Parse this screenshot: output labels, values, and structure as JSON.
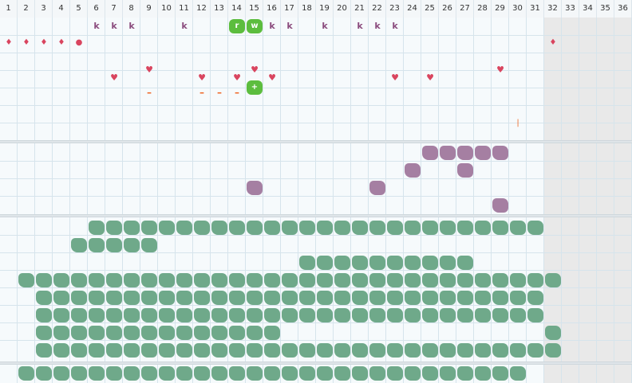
{
  "columns": [
    "1",
    "2",
    "3",
    "4",
    "5",
    "6",
    "7",
    "8",
    "9",
    "10",
    "11",
    "12",
    "13",
    "14",
    "15",
    "16",
    "17",
    "18",
    "19",
    "20",
    "21",
    "22",
    "23",
    "24",
    "25",
    "26",
    "27",
    "28",
    "29",
    "30",
    "31",
    "32",
    "33",
    "34",
    "35",
    "36"
  ],
  "colors": {
    "green_blob": "#6fa98a",
    "purple_blob": "#a57fa2",
    "badge_green": "#5cbd3e",
    "red_marker": "#d9455f",
    "orange_marker": "#ef6b2b",
    "k_marker": "#8a4b7d"
  },
  "band1": {
    "k_marks": [
      6,
      7,
      8,
      11,
      16,
      17,
      19,
      21,
      22,
      23
    ],
    "badges": [
      {
        "col": 14,
        "text": "r"
      },
      {
        "col": 15,
        "text": "w"
      },
      {
        "col": 15,
        "row": 4,
        "text": "+"
      }
    ],
    "drops_row2": [
      1,
      2,
      3,
      4,
      32
    ],
    "dot_row2": [
      5
    ],
    "hearts_row4": [
      7,
      12,
      14,
      16,
      23,
      25
    ],
    "hearts_row3b": [
      9,
      15,
      29
    ],
    "dashes_row5": [
      9,
      12,
      13,
      14
    ],
    "tick_row7": [
      30
    ]
  },
  "band2": {
    "purple": [
      {
        "col": 25,
        "row": 0
      },
      {
        "col": 26,
        "row": 0
      },
      {
        "col": 27,
        "row": 0
      },
      {
        "col": 28,
        "row": 0
      },
      {
        "col": 29,
        "row": 0
      },
      {
        "col": 24,
        "row": 1
      },
      {
        "col": 27,
        "row": 1
      },
      {
        "col": 15,
        "row": 2
      },
      {
        "col": 22,
        "row": 2
      },
      {
        "col": 29,
        "row": 3
      }
    ]
  },
  "band3": {
    "rows": [
      {
        "from": 6,
        "to": 31
      },
      {
        "from": 5,
        "to": 9
      },
      {
        "from": 18,
        "to": 27
      },
      {
        "from": 2,
        "to": 32
      },
      {
        "from": 3,
        "to": 31
      },
      {
        "from": 3,
        "to": 31
      },
      {
        "from": 3,
        "to": 16,
        "extra": [
          32
        ]
      },
      {
        "from": 3,
        "to": 32
      }
    ]
  },
  "band4": {
    "rows": [
      {
        "from": 2,
        "to": 30
      }
    ]
  }
}
